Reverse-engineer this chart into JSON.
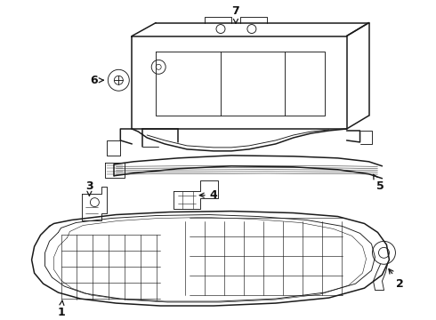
{
  "background_color": "#ffffff",
  "line_color": "#1a1a1a",
  "text_color": "#111111",
  "figsize": [
    4.9,
    3.6
  ],
  "dpi": 100,
  "lw_main": 1.1,
  "lw_thin": 0.65,
  "lw_grid": 0.45
}
